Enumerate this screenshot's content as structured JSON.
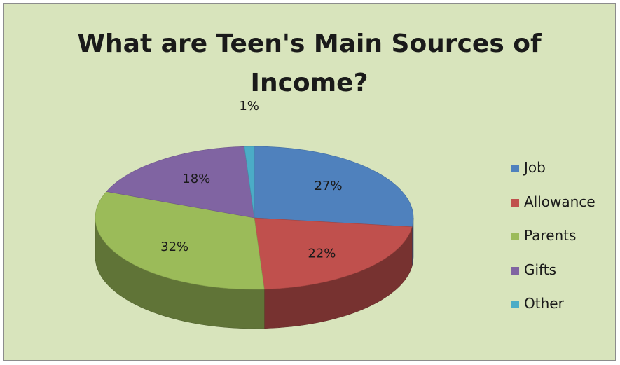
{
  "chart_data": {
    "type": "pie",
    "title": "What are Teen's Main Sources of Income?",
    "title_lines": [
      "What are Teen's Main Sources of",
      "Income?"
    ],
    "slices": [
      {
        "name": "Job",
        "value": 27,
        "label": "27%",
        "color": "#4f81bd"
      },
      {
        "name": "Allowance",
        "value": 22,
        "label": "22%",
        "color": "#c0504d"
      },
      {
        "name": "Parents",
        "value": 32,
        "label": "32%",
        "color": "#9bbb59"
      },
      {
        "name": "Gifts",
        "value": 18,
        "label": "18%",
        "color": "#8064a2"
      },
      {
        "name": "Other",
        "value": 1,
        "label": "1%",
        "color": "#4bacc6"
      }
    ],
    "legend_position": "right",
    "three_d": true
  },
  "colors": {
    "background": "#d8e4bc",
    "border": "#8c8c8c"
  }
}
